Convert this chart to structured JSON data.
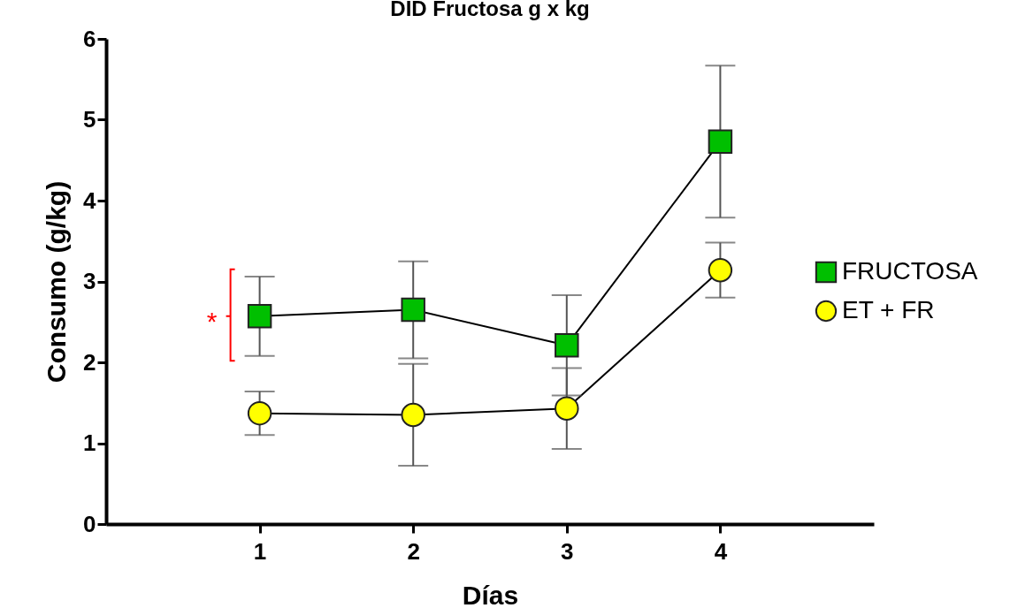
{
  "chart_data": {
    "type": "line",
    "title": "DID Fructosa g x kg",
    "xlabel": "Días",
    "ylabel": "Consumo (g/kg)",
    "x": [
      1,
      2,
      3,
      4
    ],
    "xlim": [
      0,
      5
    ],
    "xticks": [
      1,
      2,
      3,
      4
    ],
    "ylim": [
      0,
      6
    ],
    "yticks": [
      0,
      1,
      2,
      3,
      4,
      5,
      6
    ],
    "grid": false,
    "legend": "right",
    "line_style": "solid",
    "series": [
      {
        "name": "FRUCTOSA",
        "color": "#00bf00",
        "marker": "square",
        "values": [
          2.57,
          2.65,
          2.21,
          4.73
        ],
        "errors": [
          0.49,
          0.6,
          0.62,
          0.94
        ]
      },
      {
        "name": "ET + FR",
        "color": "#ffff00",
        "marker": "circle",
        "values": [
          1.37,
          1.35,
          1.43,
          3.14
        ],
        "errors": [
          0.27,
          0.63,
          0.5,
          0.34
        ]
      }
    ],
    "annotations": [
      {
        "text": "*",
        "x": 1,
        "y": 2.57
      }
    ]
  }
}
